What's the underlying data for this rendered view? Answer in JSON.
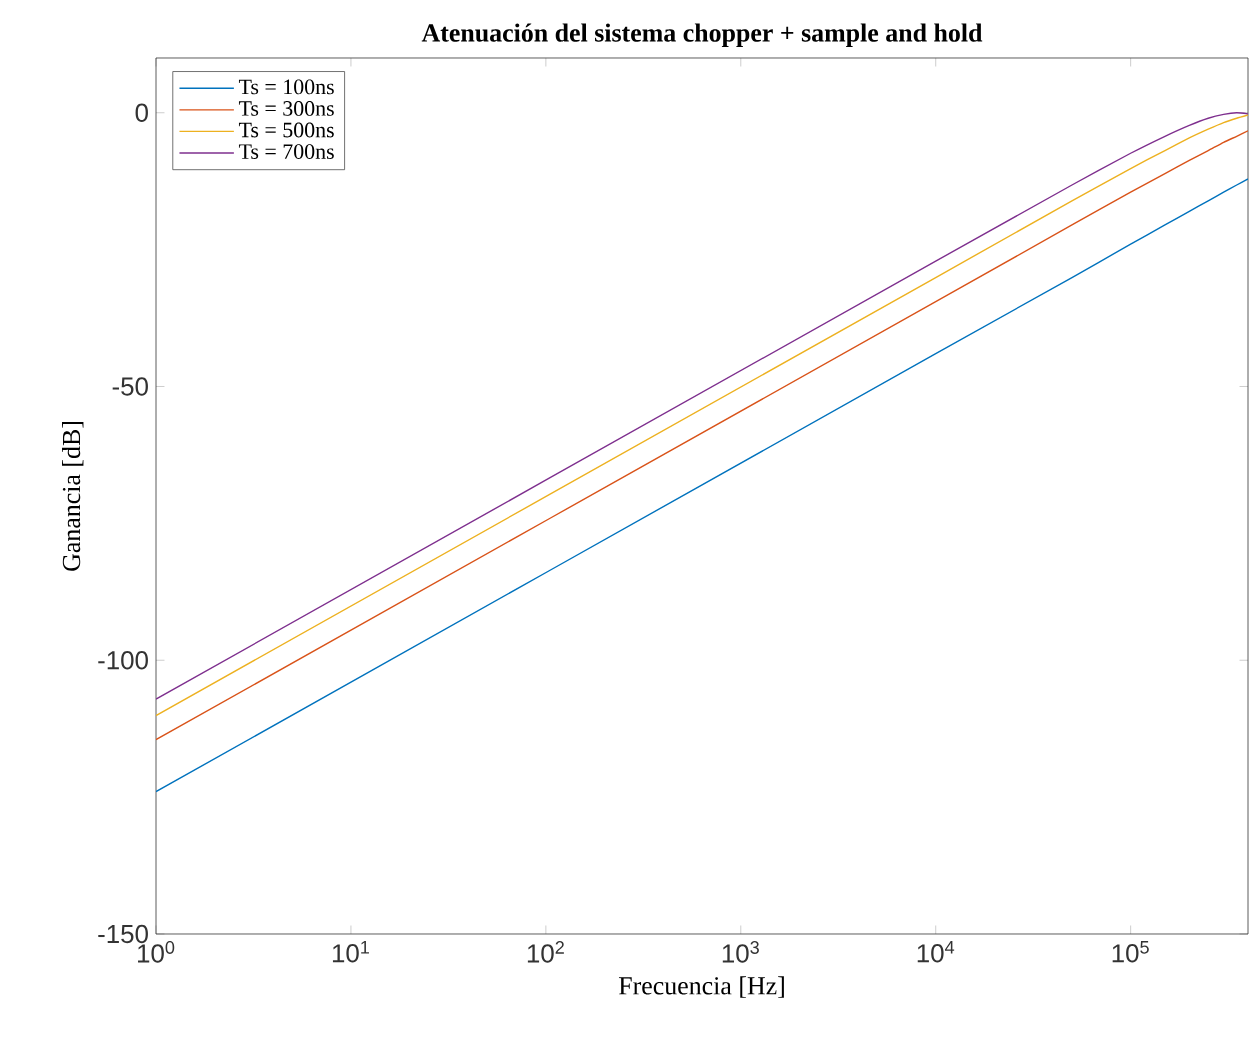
{
  "chart_data": {
    "type": "line",
    "title": "Atenuación del sistema chopper + sample and hold",
    "xlabel": "Frecuencia [Hz]",
    "ylabel": "Ganancia [dB]",
    "log": "x",
    "xlim": [
      1,
      400000
    ],
    "ylim": [
      -150,
      10
    ],
    "xticks": [
      {
        "value": 1,
        "label": "10$^{0}$"
      },
      {
        "value": 10,
        "label": "10$^{1}$"
      },
      {
        "value": 100,
        "label": "10$^{2}$"
      },
      {
        "value": 1000,
        "label": "10$^{3}$"
      },
      {
        "value": 10000,
        "label": "10$^{4}$"
      },
      {
        "value": 100000,
        "label": "10$^{5}$"
      }
    ],
    "yticks": [
      -150,
      -100,
      -50,
      0
    ],
    "grid": false,
    "legend": "top left",
    "x": [
      1,
      10000,
      50000,
      100000,
      150000,
      200000,
      250000,
      300000,
      350000,
      400000
    ],
    "series": [
      {
        "name": "Ts = 100ns",
        "color": "#0072bd",
        "values": [
          -124.0,
          -44.0,
          -30.1,
          -24.0,
          -20.5,
          -18.0,
          -16.1,
          -14.5,
          -13.2,
          -12.1
        ]
      },
      {
        "name": "Ts = 300ns",
        "color": "#d95319",
        "values": [
          -114.5,
          -34.5,
          -20.5,
          -14.5,
          -11.1,
          -8.7,
          -6.9,
          -5.4,
          -4.3,
          -3.3
        ]
      },
      {
        "name": "Ts = 500ns",
        "color": "#edb120",
        "values": [
          -110.1,
          -30.1,
          -16.1,
          -10.2,
          -6.9,
          -4.6,
          -3.0,
          -1.8,
          -1.0,
          -0.4
        ]
      },
      {
        "name": "Ts = 700ns",
        "color": "#7e2f8e",
        "values": [
          -107.1,
          -27.1,
          -13.2,
          -7.4,
          -4.3,
          -2.3,
          -1.0,
          -0.3,
          0.0,
          -0.2
        ]
      }
    ]
  }
}
